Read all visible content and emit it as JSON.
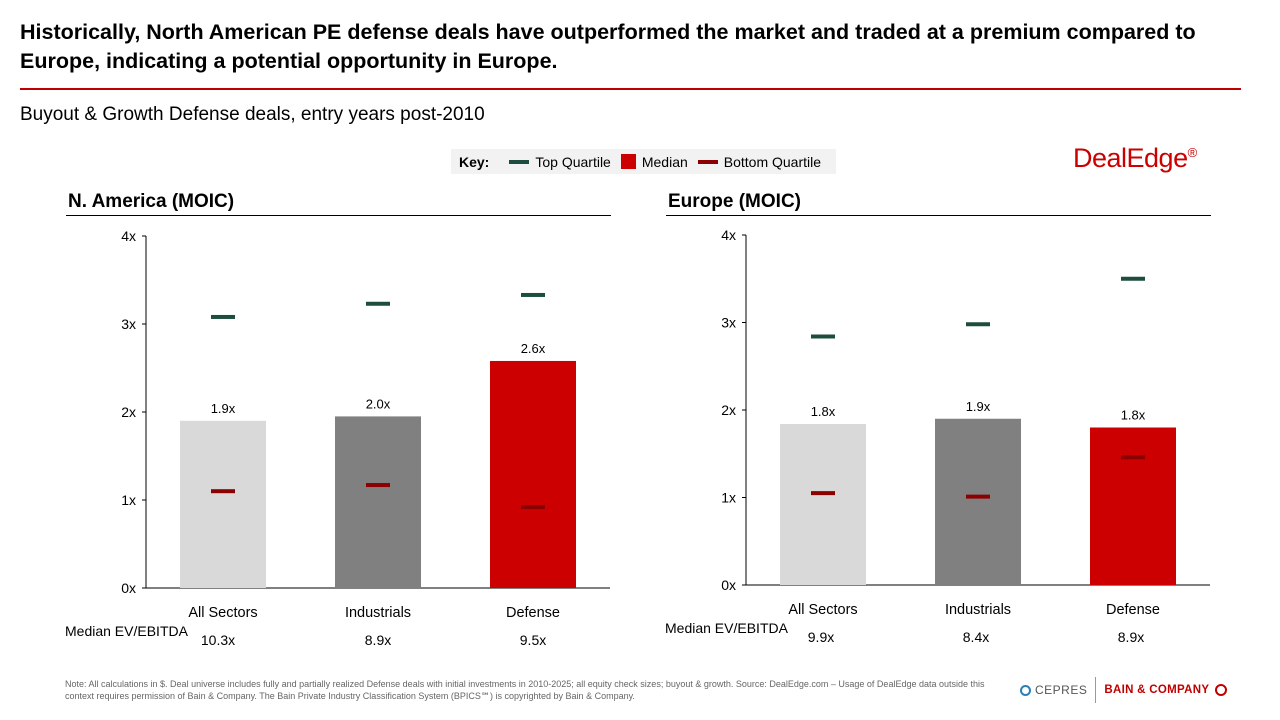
{
  "header": {
    "title": "Historically, North American PE defense deals have outperformed the market and traded at a premium compared to Europe, indicating a potential opportunity in Europe.",
    "subtitle": "Buyout & Growth Defense deals, entry years post-2010"
  },
  "legend": {
    "key_label": "Key:",
    "top_quartile": "Top Quartile",
    "median": "Median",
    "bottom_quartile": "Bottom Quartile"
  },
  "brand": {
    "name": "DealEdge",
    "mark": "®"
  },
  "colors": {
    "top_quartile": "#1d4d3e",
    "bottom_quartile": "#8b0000",
    "all_sectors": "#d9d9d9",
    "industrials": "#808080",
    "defense": "#cc0000",
    "accent": "#c00000"
  },
  "chart_data": [
    {
      "type": "bar",
      "title": "N. America (MOIC)",
      "categories": [
        "All Sectors",
        "Industrials",
        "Defense"
      ],
      "series": [
        {
          "name": "Median",
          "values": [
            1.9,
            1.95,
            2.58
          ],
          "labels": [
            "1.9x",
            "2.0x",
            "2.6x"
          ]
        },
        {
          "name": "Top Quartile",
          "values": [
            3.08,
            3.23,
            3.33
          ]
        },
        {
          "name": "Bottom Quartile",
          "values": [
            1.1,
            1.17,
            0.92
          ]
        }
      ],
      "yticks": [
        "0x",
        "1x",
        "2x",
        "3x",
        "4x"
      ],
      "ylim": [
        0,
        4
      ],
      "footer_label": "Median EV/EBITDA",
      "footer_values": [
        "10.3x",
        "8.9x",
        "9.5x"
      ]
    },
    {
      "type": "bar",
      "title": "Europe (MOIC)",
      "categories": [
        "All Sectors",
        "Industrials",
        "Defense"
      ],
      "series": [
        {
          "name": "Median",
          "values": [
            1.84,
            1.9,
            1.8
          ],
          "labels": [
            "1.8x",
            "1.9x",
            "1.8x"
          ]
        },
        {
          "name": "Top Quartile",
          "values": [
            2.84,
            2.98,
            3.5
          ]
        },
        {
          "name": "Bottom Quartile",
          "values": [
            1.05,
            1.01,
            1.46
          ]
        }
      ],
      "yticks": [
        "0x",
        "1x",
        "2x",
        "3x",
        "4x"
      ],
      "ylim": [
        0,
        4
      ],
      "footer_label": "Median EV/EBITDA",
      "footer_values": [
        "9.9x",
        "8.4x",
        "8.9x"
      ]
    }
  ],
  "footer": {
    "note": "Note: All calculations in $. Deal universe includes fully and partially realized Defense deals with initial investments in 2010-2025; all equity check sizes; buyout & growth.  Source: DealEdge.com – Usage of DealEdge data outside this context requires permission of Bain & Company. The Bain Private Industry Classification System (BPICS℠) is copyrighted by Bain & Company.",
    "cepres": "CEPRES",
    "bain": "BAIN & COMPANY"
  }
}
